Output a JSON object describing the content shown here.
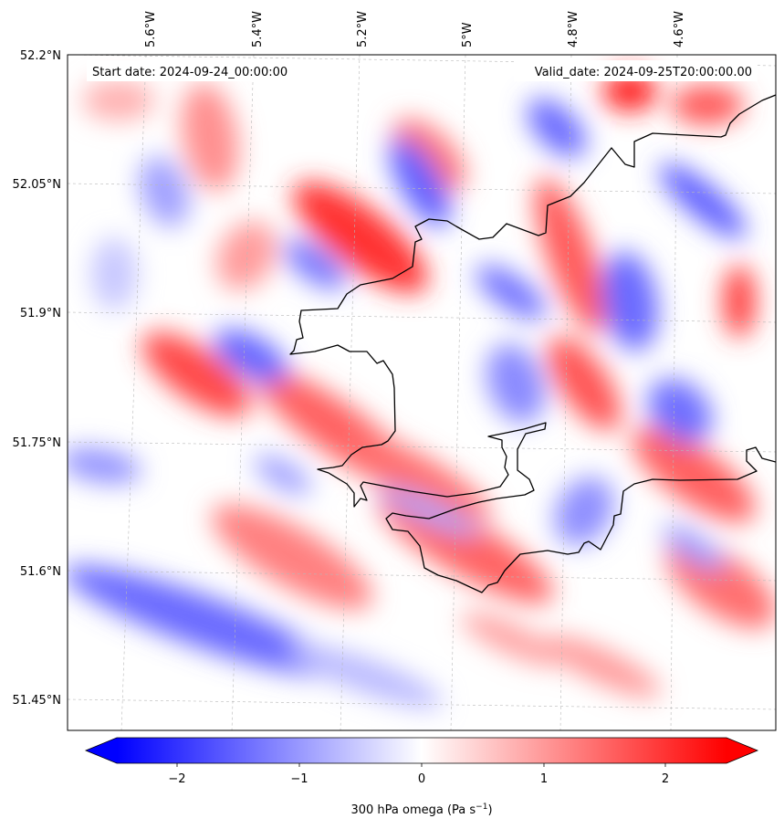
{
  "header": {
    "start_date": "Start date: 2024-09-24_00:00:00",
    "valid_date": "Valid_date: 2024-09-25T20:00:00.00"
  },
  "map": {
    "lon_labels": [
      "5.6°W",
      "5.4°W",
      "5.2°W",
      "5°W",
      "4.8°W",
      "4.6°W"
    ],
    "lat_labels": [
      "52.2°N",
      "52.05°N",
      "51.9°N",
      "51.75°N",
      "51.6°N",
      "51.45°N"
    ],
    "grid": true
  },
  "colorbar": {
    "ticks": [
      "−2",
      "−1",
      "0",
      "1",
      "2"
    ],
    "range": [
      -2.7,
      2.7
    ],
    "extend": "both",
    "colors": {
      "min": "#0000ff",
      "mid": "#ffffff",
      "max": "#ff0000"
    },
    "label_main": "300 hPa omega (Pa s",
    "label_sup": "−1",
    "label_end": ")"
  },
  "chart_data": {
    "type": "heatmap",
    "field": "300 hPa omega",
    "units": "Pa s⁻¹",
    "colormap": "bwr",
    "vmin": -2.7,
    "vmax": 2.7,
    "lon_range": [
      "5.7°W",
      "4.5°W"
    ],
    "lat_range": [
      "51.42°N",
      "52.2°N"
    ],
    "pattern": "alternating NW–SE oriented bands of ascent (blue, ~−1.5) and descent (red, up to ~+2)"
  }
}
